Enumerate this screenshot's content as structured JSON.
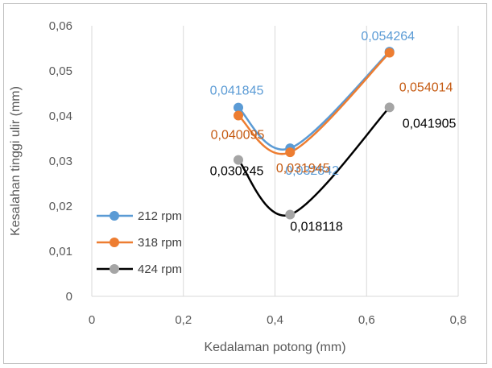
{
  "chart_data": {
    "type": "scatter",
    "xlabel": "Kedalaman potong (mm)",
    "ylabel": "Kesalahan tinggi ulir (mm)",
    "xlim": [
      0,
      0.8
    ],
    "ylim": [
      0,
      0.06
    ],
    "xticks": [
      0,
      0.2,
      0.4,
      0.6,
      0.8
    ],
    "yticks": [
      0,
      0.01,
      0.02,
      0.03,
      0.04,
      0.05,
      0.06
    ],
    "xtick_labels": [
      "0",
      "0,2",
      "0,4",
      "0,6",
      "0,8"
    ],
    "ytick_labels": [
      "0",
      "0,01",
      "0,02",
      "0,03",
      "0,04",
      "0,05",
      "0,06"
    ],
    "grid": "vertical",
    "legend": "bottom-left",
    "series": [
      {
        "name": "212 rpm",
        "color": "#5b9bd5",
        "line_color": "#5b9bd5",
        "x": [
          0.32,
          0.433,
          0.65
        ],
        "y": [
          0.041845,
          0.032842,
          0.054264
        ],
        "labels": [
          "0,041845",
          "0,032842",
          "0,054264"
        ]
      },
      {
        "name": "318 rpm",
        "color": "#ed7d31",
        "line_color": "#ed7d31",
        "x": [
          0.32,
          0.433,
          0.65
        ],
        "y": [
          0.040095,
          0.031945,
          0.054014
        ],
        "labels": [
          "0,040095",
          "0,031945",
          "0,054014"
        ]
      },
      {
        "name": "424 rpm",
        "color": "#a5a5a5",
        "line_color": "#000000",
        "x": [
          0.32,
          0.433,
          0.65
        ],
        "y": [
          0.030245,
          0.018118,
          0.041905
        ],
        "labels": [
          "0,030245",
          "0,018118",
          "0,041905"
        ]
      }
    ]
  }
}
